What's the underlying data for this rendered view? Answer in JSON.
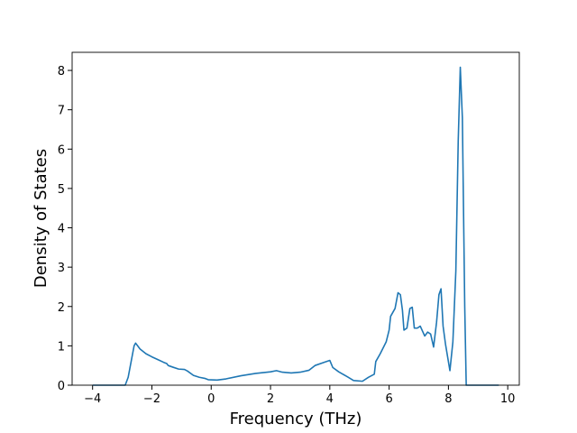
{
  "chart_data": {
    "type": "line",
    "xlabel": "Frequency (THz)",
    "ylabel": "Density of States",
    "x": [
      -4,
      -2.9,
      -2.8,
      -2.7,
      -2.6,
      -2.55,
      -2.4,
      -2.2,
      -2,
      -1.8,
      -1.6,
      -1.5,
      -1.45,
      -1.3,
      -1.1,
      -0.9,
      -0.8,
      -0.6,
      -0.4,
      -0.2,
      -0.1,
      0.2,
      0.5,
      1,
      1.5,
      2,
      2.2,
      2.4,
      2.7,
      3,
      3.3,
      3.5,
      3.8,
      4,
      4.1,
      4.3,
      4.6,
      4.8,
      5.1,
      5.3,
      5.5,
      5.55,
      5.7,
      5.9,
      6,
      6.05,
      6.2,
      6.3,
      6.38,
      6.45,
      6.5,
      6.6,
      6.7,
      6.78,
      6.85,
      6.95,
      7.05,
      7.2,
      7.3,
      7.4,
      7.5,
      7.6,
      7.68,
      7.75,
      7.82,
      7.9,
      8.05,
      8.15,
      8.25,
      8.33,
      8.4,
      8.47,
      8.55,
      8.6,
      9.7
    ],
    "series": [
      {
        "color": "#1f77b4",
        "values": [
          0,
          0,
          0.2,
          0.6,
          1.0,
          1.07,
          0.92,
          0.8,
          0.72,
          0.65,
          0.58,
          0.55,
          0.5,
          0.46,
          0.41,
          0.4,
          0.36,
          0.25,
          0.2,
          0.17,
          0.14,
          0.13,
          0.16,
          0.24,
          0.3,
          0.34,
          0.37,
          0.33,
          0.31,
          0.33,
          0.38,
          0.5,
          0.58,
          0.63,
          0.45,
          0.34,
          0.21,
          0.12,
          0.1,
          0.2,
          0.28,
          0.6,
          0.8,
          1.1,
          1.4,
          1.75,
          1.95,
          2.35,
          2.3,
          1.9,
          1.4,
          1.45,
          1.95,
          1.98,
          1.45,
          1.45,
          1.5,
          1.25,
          1.35,
          1.3,
          0.97,
          1.6,
          2.3,
          2.45,
          1.5,
          1.05,
          0.37,
          1.1,
          2.9,
          6.2,
          8.08,
          6.8,
          2,
          0,
          0
        ]
      }
    ],
    "xlim": [
      -4.69,
      10.39
    ],
    "ylim": [
      0,
      8.46
    ],
    "xticks": [
      {
        "value": -4,
        "label": "−4"
      },
      {
        "value": -2,
        "label": "−2"
      },
      0,
      2,
      4,
      6,
      8,
      10
    ],
    "yticks": [
      0,
      1,
      2,
      3,
      4,
      5,
      6,
      7,
      8
    ]
  }
}
